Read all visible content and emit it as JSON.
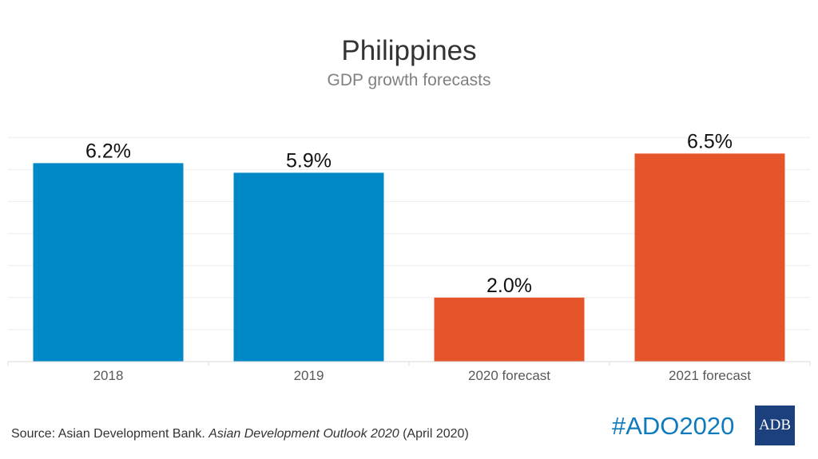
{
  "colors": {
    "actual": "#0088c7",
    "forecast": "#e6542a",
    "gridline": "#eeeeee",
    "axis": "#d9d9d9",
    "hashtag": "#0f7bbd",
    "logo_bg": "#1c3f7e"
  },
  "chart_data": {
    "type": "bar",
    "title": "Philippines",
    "subtitle": "GDP growth forecasts",
    "categories": [
      "2018",
      "2019",
      "2020 forecast",
      "2021 forecast"
    ],
    "values": [
      6.2,
      5.9,
      2.0,
      6.5
    ],
    "data_labels": [
      "6.2%",
      "5.9%",
      "2.0%",
      "6.5%"
    ],
    "bar_kinds": [
      "actual",
      "actual",
      "forecast",
      "forecast"
    ],
    "ylim": [
      0,
      7
    ],
    "grid": true,
    "xlabel": "",
    "ylabel": ""
  },
  "footer": {
    "source_prefix": "Source: Asian Development Bank. ",
    "source_publication": "Asian Development Outlook 2020",
    "source_suffix": " (April 2020)",
    "hashtag": "#ADO2020",
    "logo_text": "ADB"
  }
}
